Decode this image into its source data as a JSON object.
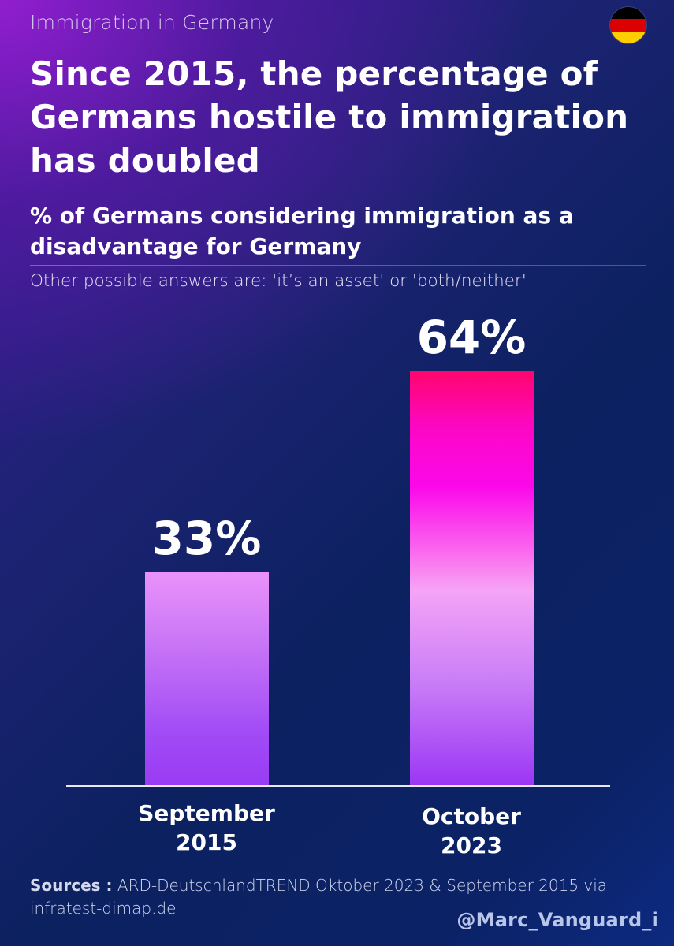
{
  "header": {
    "kicker": "Immigration in Germany",
    "flag_icon": "germany-flag-icon",
    "flag_colors": [
      "#000000",
      "#DD0000",
      "#FFCE00"
    ],
    "title": "Since 2015, the percentage of Germans hostile to immigration has doubled",
    "subtitle": "% of Germans considering immigration as a disadvantage for Germany",
    "note": "Other possible answers are: 'it’s an asset' or 'both/neither'"
  },
  "chart_data": {
    "type": "bar",
    "categories": [
      "September\n2015",
      "October\n2023"
    ],
    "values": [
      33,
      64
    ],
    "value_labels": [
      "33%",
      "64%"
    ],
    "title": "Since 2015, the percentage of Germans hostile to immigration has doubled",
    "subtitle": "% of Germans considering immigration as a disadvantage for Germany",
    "xlabel": "",
    "ylabel": "",
    "ylim": [
      0,
      100
    ],
    "grid": false,
    "legend": "none",
    "colors": {
      "bar_2015_top": "#EA92FB",
      "bar_2015_bottom": "#9A3BF4",
      "bar_2023_top": "#FF066C",
      "bar_2023_mid": "#FB08EA",
      "bar_2023_bottom": "#9C36F4"
    }
  },
  "footer": {
    "sources_label": "Sources :",
    "sources_text": "ARD-DeutschlandTREND Oktober 2023 & September 2015 via infratest-dimap.de",
    "handle": "@Marc_Vanguard_i"
  },
  "colors": {
    "background_top_left": "#8E1ECF",
    "background_main": "#0C2160",
    "text": "#FFFFFF"
  }
}
